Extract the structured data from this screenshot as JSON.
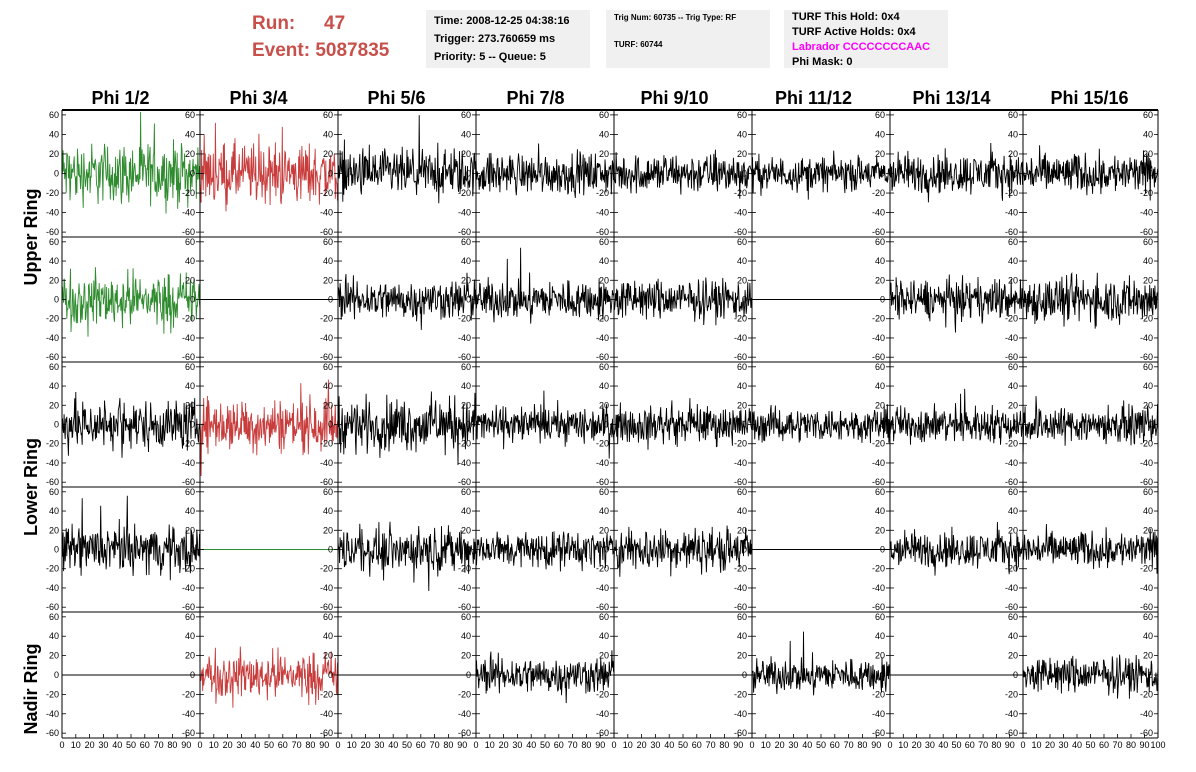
{
  "header": {
    "run_label": "Run:",
    "run_value": "47",
    "event_label": "Event:",
    "event_value": "5087835",
    "time": "Time: 2008-12-25 04:38:16",
    "trigger": "Trigger: 273.760659 ms",
    "priority": "Priority: 5 -- Queue: 5",
    "trig_num": "Trig Num: 60735 -- Trig Type: RF",
    "turf": "TURF: 60744",
    "turf_hold": "TURF This Hold: 0x4",
    "turf_active": "TURF Active Holds: 0x4",
    "labrador": "Labrador CCCCCCCCAAC",
    "phi_mask": "Phi Mask: 0"
  },
  "chart_data": {
    "type": "line",
    "columns": [
      "Phi 1/2",
      "Phi 3/4",
      "Phi 5/6",
      "Phi 7/8",
      "Phi 9/10",
      "Phi 11/12",
      "Phi 13/14",
      "Phi 15/16"
    ],
    "rows": [
      "Upper Ring",
      "Lower Ring",
      "Nadir Ring"
    ],
    "xlim": [
      0,
      100
    ],
    "ylim": [
      -65,
      65
    ],
    "y_ticks": [
      -60,
      -40,
      -20,
      0,
      20,
      40,
      60
    ],
    "x_ticks": [
      0,
      10,
      20,
      30,
      40,
      50,
      60,
      70,
      80,
      90,
      100
    ],
    "trace_colors": {
      "black": "#000000",
      "green": "#2e8b2e",
      "red": "#c83c3c"
    },
    "panels": [
      [
        "green",
        "red",
        "black",
        "black",
        "black",
        "black",
        "black",
        "black"
      ],
      [
        "green",
        "flat",
        "black",
        "black",
        "black",
        "flat",
        "black",
        "black"
      ],
      [
        "black",
        "red",
        "black",
        "black",
        "black",
        "black",
        "black",
        "black"
      ],
      [
        "black",
        "flat-green",
        "black",
        "black",
        "black",
        "flat",
        "black",
        "black"
      ],
      [
        "flat",
        "red",
        "flat",
        "black",
        "flat",
        "black",
        "flat",
        "black"
      ]
    ],
    "amplitudes": [
      [
        18,
        18,
        14,
        12,
        12,
        10,
        12,
        12
      ],
      [
        16,
        0,
        12,
        12,
        12,
        0,
        12,
        14
      ],
      [
        15,
        16,
        16,
        11,
        11,
        10,
        11,
        11
      ],
      [
        14,
        0,
        13,
        11,
        13,
        0,
        11,
        11
      ],
      [
        0,
        14,
        0,
        11,
        0,
        10,
        0,
        11
      ]
    ]
  }
}
